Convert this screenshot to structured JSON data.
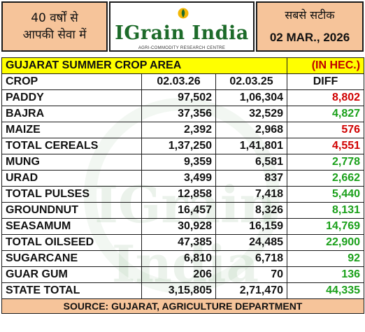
{
  "header": {
    "left_line1": "40 वर्षों से",
    "left_line2": "आपकी सेवा में",
    "right_line1": "सबसे सटीक",
    "date": "02 MAR., 2026",
    "logo_name": "IGrain India",
    "logo_tagline": "AGRI-COMMODITY RESEARCH CENTRE",
    "watermark": "IGrain India"
  },
  "table": {
    "title": "GUJARAT SUMMER CROP AREA",
    "unit": "(IN HEC.)",
    "columns": [
      "CROP",
      "02.03.26",
      "02.03.25",
      "DIFF"
    ],
    "rows": [
      {
        "crop": "PADDY",
        "y2026": "97,502",
        "y2025": "1,06,304",
        "diff": "8,802",
        "diff_color": "red"
      },
      {
        "crop": "BAJRA",
        "y2026": "37,356",
        "y2025": "32,529",
        "diff": "4,827",
        "diff_color": "green"
      },
      {
        "crop": "MAIZE",
        "y2026": "2,392",
        "y2025": "2,968",
        "diff": "576",
        "diff_color": "red"
      },
      {
        "crop": "TOTAL CEREALS",
        "y2026": "1,37,250",
        "y2025": "1,41,801",
        "diff": "4,551",
        "diff_color": "red"
      },
      {
        "crop": "MUNG",
        "y2026": "9,359",
        "y2025": "6,581",
        "diff": "2,778",
        "diff_color": "green"
      },
      {
        "crop": "URAD",
        "y2026": "3,499",
        "y2025": "837",
        "diff": "2,662",
        "diff_color": "green"
      },
      {
        "crop": "TOTAL PULSES",
        "y2026": "12,858",
        "y2025": "7,418",
        "diff": "5,440",
        "diff_color": "green"
      },
      {
        "crop": "GROUNDNUT",
        "y2026": "16,457",
        "y2025": "8,326",
        "diff": "8,131",
        "diff_color": "green"
      },
      {
        "crop": "SEASAMUM",
        "y2026": "30,928",
        "y2025": "16,159",
        "diff": "14,769",
        "diff_color": "green"
      },
      {
        "crop": "TOTAL OILSEED",
        "y2026": "47,385",
        "y2025": "24,485",
        "diff": "22,900",
        "diff_color": "green"
      },
      {
        "crop": "SUGARCANE",
        "y2026": "6,810",
        "y2025": "6,718",
        "diff": "92",
        "diff_color": "green"
      },
      {
        "crop": "GUAR GUM",
        "y2026": "206",
        "y2025": "70",
        "diff": "136",
        "diff_color": "green"
      },
      {
        "crop": "STATE TOTAL",
        "y2026": "3,15,805",
        "y2025": "2,71,470",
        "diff": "44,335",
        "diff_color": "green"
      }
    ],
    "source": "SOURCE: GUJARAT, AGRICULTURE DEPARTMENT"
  },
  "colors": {
    "header_bg": "#f6c49a",
    "title_bg": "#ffff00",
    "red": "#d00000",
    "green": "#1aa01a",
    "logo_green": "#1d6b2a"
  }
}
